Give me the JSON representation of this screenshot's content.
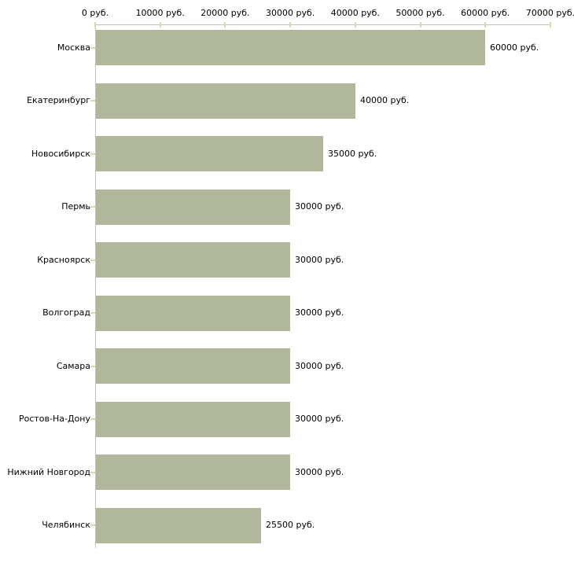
{
  "chart_data": {
    "type": "bar",
    "orientation": "horizontal",
    "title": "",
    "categories": [
      "Москва",
      "Екатеринбург",
      "Новосибирск",
      "Пермь",
      "Красноярск",
      "Волгоград",
      "Самара",
      "Ростов-На-Дону",
      "Нижний Новгород",
      "Челябинск"
    ],
    "values": [
      60000,
      40000,
      35000,
      30000,
      30000,
      30000,
      30000,
      30000,
      30000,
      25500
    ],
    "bar_labels": [
      "60000 руб.",
      "40000 руб.",
      "35000 руб.",
      "30000 руб.",
      "30000 руб.",
      "30000 руб.",
      "30000 руб.",
      "30000 руб.",
      "30000 руб.",
      "25500 руб."
    ],
    "unit": "руб.",
    "x_axis": {
      "position": "top",
      "range": [
        0,
        70000
      ],
      "ticks": [
        0,
        10000,
        20000,
        30000,
        40000,
        50000,
        60000,
        70000
      ],
      "tick_labels": [
        "0 руб.",
        "10000 руб.",
        "20000 руб.",
        "30000 руб.",
        "40000 руб.",
        "50000 руб.",
        "60000 руб.",
        "70000 руб."
      ]
    },
    "grid": false,
    "legend": "none",
    "colors": {
      "bar": "#b1b79b",
      "axis_line": "#c3c3c3",
      "tick": "#d9d9b0",
      "text": "#000000",
      "background": "#ffffff"
    }
  }
}
